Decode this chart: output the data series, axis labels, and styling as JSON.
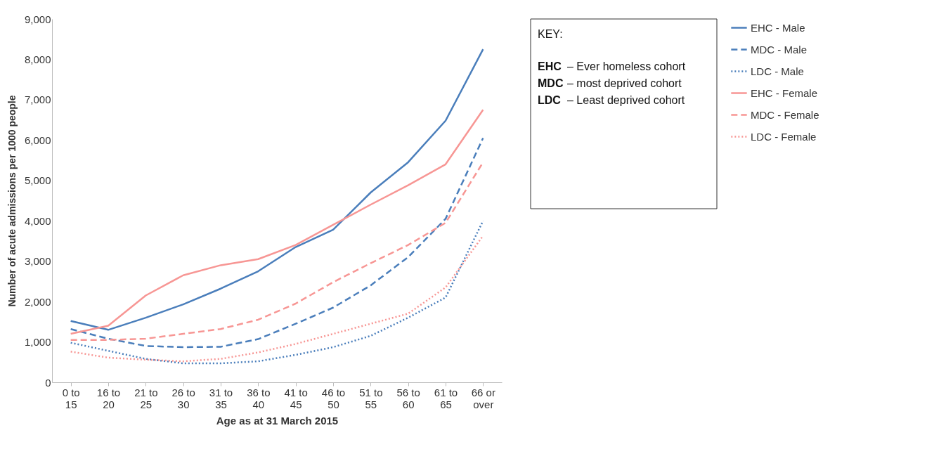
{
  "chart_data": {
    "type": "line",
    "xlabel": "Age as at 31 March 2015",
    "ylabel": "Number of acute admissions per 1000 people",
    "categories": [
      "0 to 15",
      "16 to 20",
      "21 to 25",
      "26 to 30",
      "31 to 35",
      "36 to 40",
      "41 to 45",
      "46 to 50",
      "51 to 55",
      "56 to 60",
      "61 to 65",
      "66 or over"
    ],
    "series": [
      {
        "name": "EHC - Male",
        "color": "#4a7ebb",
        "line_style": "solid",
        "values": [
          1520,
          1300,
          1600,
          1930,
          2320,
          2750,
          3350,
          3780,
          4700,
          5450,
          6480,
          8250
        ]
      },
      {
        "name": "MDC - Male",
        "color": "#4a7ebb",
        "line_style": "dashed",
        "values": [
          1320,
          1080,
          900,
          870,
          880,
          1070,
          1450,
          1850,
          2400,
          3100,
          4050,
          6050
        ]
      },
      {
        "name": "LDC - Male",
        "color": "#4a7ebb",
        "line_style": "dotted",
        "values": [
          980,
          780,
          580,
          470,
          470,
          520,
          680,
          870,
          1150,
          1600,
          2100,
          4000
        ]
      },
      {
        "name": "EHC - Female",
        "color": "#f79694",
        "line_style": "solid",
        "values": [
          1200,
          1400,
          2150,
          2650,
          2900,
          3050,
          3400,
          3900,
          4400,
          4880,
          5400,
          6750
        ]
      },
      {
        "name": "MDC - Female",
        "color": "#f79694",
        "line_style": "dashed",
        "values": [
          1050,
          1050,
          1080,
          1200,
          1320,
          1550,
          1950,
          2480,
          2950,
          3400,
          3950,
          5450
        ]
      },
      {
        "name": "LDC - Female",
        "color": "#f79694",
        "line_style": "dotted",
        "values": [
          760,
          610,
          560,
          520,
          580,
          740,
          950,
          1200,
          1450,
          1700,
          2350,
          3630
        ]
      }
    ],
    "ylim": [
      0,
      9000
    ],
    "yticks": [
      0,
      {
        "value": 1000,
        "label": "1,000"
      },
      {
        "value": 2000,
        "label": "2,000"
      },
      {
        "value": 3000,
        "label": "3,000"
      },
      {
        "value": 4000,
        "label": "4,000"
      },
      {
        "value": 5000,
        "label": "5,000"
      },
      {
        "value": 6000,
        "label": "6,000"
      },
      {
        "value": 7000,
        "label": "7,000"
      },
      {
        "value": 8000,
        "label": "8,000"
      },
      {
        "value": 9000,
        "label": "9,000"
      }
    ],
    "grid": false,
    "legend": "right",
    "marker": "none",
    "annotations": [
      "KEY:",
      "EHC – Ever homeless cohort",
      "MDC – most deprived cohort",
      "LDC – Least deprived cohort"
    ]
  }
}
